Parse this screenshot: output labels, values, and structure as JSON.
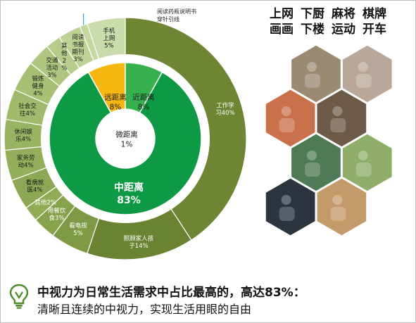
{
  "chart_data": {
    "type": "pie",
    "title": "",
    "outer_ring": [
      {
        "label_lines": [
          "工作学",
          "习40%"
        ],
        "value": 40,
        "color": "#6e8633"
      },
      {
        "label_lines": [
          "照顾家人孩",
          "子14%"
        ],
        "value": 14,
        "color": "#6a8332"
      },
      {
        "label_lines": [
          "看电视",
          "5%"
        ],
        "value": 5,
        "color": "#7f9a44"
      },
      {
        "label_lines": [
          "用餐饮",
          "食3%"
        ],
        "value": 3,
        "color": "#86a24b"
      },
      {
        "label_lines": [
          "其他2%"
        ],
        "value": 2,
        "color": "#90ad55"
      },
      {
        "label_lines": [
          "看病就",
          "医4%"
        ],
        "value": 4,
        "color": "#8ca854"
      },
      {
        "label_lines": [
          "家务劳",
          "动4%"
        ],
        "value": 4,
        "color": "#93af5b"
      },
      {
        "label_lines": [
          "休闲娱",
          "乐4%"
        ],
        "value": 4,
        "color": "#98b462"
      },
      {
        "label_lines": [
          "社会交",
          "往4%"
        ],
        "value": 4,
        "color": "#9fba6b"
      },
      {
        "label_lines": [
          "锻炼",
          "健身",
          "4%"
        ],
        "value": 4,
        "color": "#a6c074"
      },
      {
        "label_lines": [
          "交通",
          "活动",
          "3%"
        ],
        "value": 3,
        "color": "#aec67f"
      },
      {
        "label_lines": [
          "其",
          "他",
          "2",
          "%"
        ],
        "value": 2,
        "color": "#b6cc8a"
      },
      {
        "label_lines": [
          "阅读",
          "书报",
          "期刊",
          "3%"
        ],
        "value": 3,
        "color": "#bed295"
      },
      {
        "label_lines": [
          "阅读药瓶说明书",
          "穿针引线"
        ],
        "value": 1,
        "color": "#c6d89f"
      },
      {
        "label_lines": [
          "手机",
          "上网",
          "5%"
        ],
        "value": 5,
        "color": "#cadcab"
      }
    ],
    "inner_ring": [
      {
        "label_lines": [
          "中距离",
          "83%"
        ],
        "value": 83,
        "color": "#0e9a44"
      },
      {
        "label_lines": [
          "远距离",
          "8%"
        ],
        "value": 8,
        "color": "#f7b711"
      },
      {
        "label_lines": [
          "近距离",
          "8%"
        ],
        "value": 8,
        "color": "#37b04e"
      }
    ],
    "center": {
      "label_lines": [
        "微距离",
        "1%"
      ],
      "value": 1
    }
  },
  "activities": {
    "words": [
      "上网",
      "下厨",
      "麻将",
      "棋牌",
      "画画",
      "下楼",
      "运动",
      "开车"
    ]
  },
  "photos": [
    {
      "name": "reading-photo",
      "color": "#9a8a72"
    },
    {
      "name": "typing-laptop-photo",
      "color": "#b9a89a"
    },
    {
      "name": "cooking-photo",
      "color": "#c8714a"
    },
    {
      "name": "walking-photo",
      "color": "#6d5a48"
    },
    {
      "name": "mahjong-photo",
      "color": "#4e7a55"
    },
    {
      "name": "table-tennis-photo",
      "color": "#8fae6a"
    },
    {
      "name": "driving-photo",
      "color": "#2c3440"
    },
    {
      "name": "family-photo",
      "color": "#c39a6a"
    }
  ],
  "conclusion": {
    "headline": "中视力为日常生活需求中占比最高的，高达83%：",
    "subline": "清晰且连续的中视力，实现生活用眼的自由"
  },
  "colors": {
    "bulb": "#4f8a2b"
  }
}
